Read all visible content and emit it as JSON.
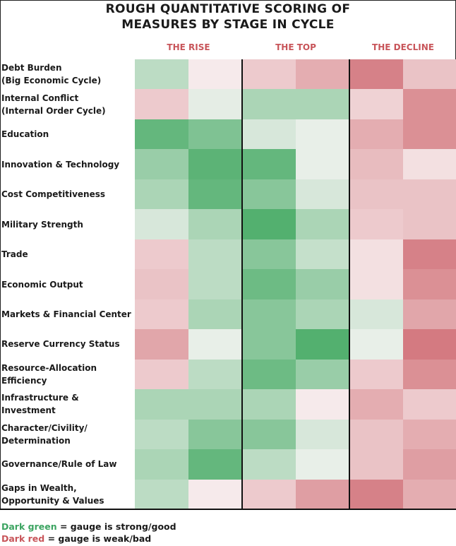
{
  "chart_data": {
    "type": "heatmap",
    "title": "ROUGH QUANTITATIVE SCORING OF\nMEASURES BY STAGE IN CYCLE",
    "stages": [
      "THE RISE",
      "THE TOP",
      "THE DECLINE"
    ],
    "scale_note": "score -1 (dark red, weak/bad) to +1 (dark green, strong/good), two sub-periods per stage",
    "rows": [
      {
        "label": "Debt Burden\n(Big Economic Cycle)",
        "scores": [
          0.35,
          -0.08,
          -0.3,
          -0.5,
          -0.8,
          -0.35
        ]
      },
      {
        "label": "Internal Conflict\n(Internal Order Cycle)",
        "scores": [
          -0.3,
          0.12,
          0.45,
          0.45,
          -0.25,
          -0.7
        ]
      },
      {
        "label": "Education",
        "scores": [
          0.85,
          0.7,
          0.2,
          0.1,
          -0.5,
          -0.7
        ]
      },
      {
        "label": "Innovation & Technology",
        "scores": [
          0.55,
          0.9,
          0.85,
          0.1,
          -0.4,
          -0.15
        ]
      },
      {
        "label": "Cost Competitiveness",
        "scores": [
          0.45,
          0.85,
          0.65,
          0.2,
          -0.35,
          -0.35
        ]
      },
      {
        "label": "Military Strength",
        "scores": [
          0.2,
          0.45,
          0.95,
          0.45,
          -0.3,
          -0.35
        ]
      },
      {
        "label": "Trade",
        "scores": [
          -0.3,
          0.35,
          0.65,
          0.3,
          -0.15,
          -0.8
        ]
      },
      {
        "label": "Economic Output",
        "scores": [
          -0.35,
          0.35,
          0.8,
          0.55,
          -0.15,
          -0.7
        ]
      },
      {
        "label": "Markets & Financial Center",
        "scores": [
          -0.3,
          0.45,
          0.65,
          0.45,
          0.2,
          -0.55
        ]
      },
      {
        "label": "Reserve Currency Status",
        "scores": [
          -0.55,
          0.1,
          0.65,
          0.95,
          0.1,
          -0.85
        ]
      },
      {
        "label": "Resource-Allocation\nEfficiency",
        "scores": [
          -0.3,
          0.35,
          0.8,
          0.55,
          -0.3,
          -0.7
        ]
      },
      {
        "label": "Infrastructure & Investment",
        "scores": [
          0.45,
          0.45,
          0.45,
          -0.08,
          -0.5,
          -0.3
        ]
      },
      {
        "label": "Character/Civility/\nDetermination",
        "scores": [
          0.35,
          0.65,
          0.65,
          0.2,
          -0.35,
          -0.5
        ]
      },
      {
        "label": "Governance/Rule of Law",
        "scores": [
          0.45,
          0.85,
          0.35,
          0.1,
          -0.35,
          -0.6
        ]
      },
      {
        "label": "Gaps in Wealth,\nOpportunity & Values",
        "scores": [
          0.35,
          -0.08,
          -0.3,
          -0.6,
          -0.8,
          -0.5
        ]
      }
    ]
  },
  "legend": {
    "green_term": "Dark green",
    "green_text": " = gauge is strong/good",
    "red_term": "Dark red",
    "red_text": " = gauge is weak/bad"
  }
}
